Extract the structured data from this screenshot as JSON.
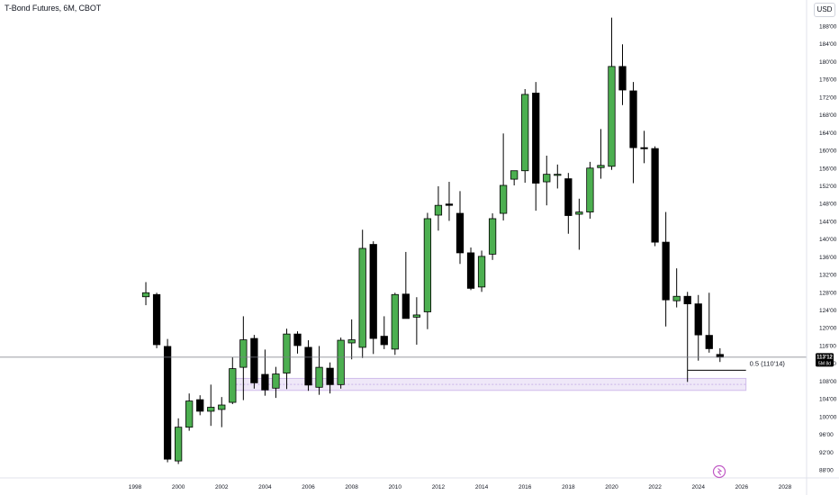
{
  "chart_title": "T-Bond Futures, 6M, CBOT",
  "currency": "USD",
  "colors": {
    "up": "#4caf50",
    "down": "#000000",
    "wick": "#000000",
    "zone_fill": "#ede4f7",
    "zone_border": "#c9b3e8",
    "price_line": "#787b86",
    "price_label_bg": "#000000",
    "axis_text": "#131722"
  },
  "price_label": {
    "value": "113'12",
    "countdown": "5M 8d"
  },
  "annotation": {
    "label": "0.5 (110'14)"
  },
  "chart_data": {
    "type": "candlestick",
    "interval": "6M",
    "x_ticks": [
      "1998",
      "2000",
      "2002",
      "2004",
      "2006",
      "2008",
      "2010",
      "2012",
      "2014",
      "2016",
      "2018",
      "2020",
      "2022",
      "2024",
      "2026",
      "2028"
    ],
    "y_ticks": [
      "88'00",
      "92'00",
      "96'00",
      "100'00",
      "104'00",
      "108'00",
      "112'00",
      "116'00",
      "120'00",
      "124'00",
      "128'00",
      "132'00",
      "136'00",
      "140'00",
      "144'00",
      "148'00",
      "152'00",
      "156'00",
      "160'00",
      "164'00",
      "168'00",
      "172'00",
      "176'00",
      "180'00",
      "184'00",
      "188'00"
    ],
    "ylim": [
      86,
      190.5
    ],
    "xlim": [
      1997.5,
      2029.5
    ],
    "candles": [
      {
        "t": 1998.5,
        "o": 127,
        "h": 130.3,
        "l": 125.1,
        "c": 127.9
      },
      {
        "t": 1999.0,
        "o": 127.5,
        "h": 127.9,
        "l": 115.4,
        "c": 116.2
      },
      {
        "t": 1999.5,
        "o": 115.8,
        "h": 117.5,
        "l": 89.7,
        "c": 90.4
      },
      {
        "t": 2000.0,
        "o": 90,
        "h": 99.6,
        "l": 89.3,
        "c": 97.6
      },
      {
        "t": 2000.5,
        "o": 97.6,
        "h": 105.2,
        "l": 96.8,
        "c": 103.5
      },
      {
        "t": 2001.0,
        "o": 103.8,
        "h": 104.8,
        "l": 100.3,
        "c": 101.2
      },
      {
        "t": 2001.5,
        "o": 101.2,
        "h": 107.2,
        "l": 97.9,
        "c": 102.1
      },
      {
        "t": 2002.0,
        "o": 101.6,
        "h": 104.4,
        "l": 97.6,
        "c": 102.6
      },
      {
        "t": 2002.5,
        "o": 103.2,
        "h": 113.4,
        "l": 102.8,
        "c": 110.8
      },
      {
        "t": 2003.0,
        "o": 111.1,
        "h": 122.6,
        "l": 103.7,
        "c": 117.3
      },
      {
        "t": 2003.5,
        "o": 117.6,
        "h": 118.4,
        "l": 106.3,
        "c": 107.6
      },
      {
        "t": 2004.0,
        "o": 109.5,
        "h": 115.1,
        "l": 104.7,
        "c": 106
      },
      {
        "t": 2004.5,
        "o": 106.4,
        "h": 111.2,
        "l": 104.2,
        "c": 109.6
      },
      {
        "t": 2005.0,
        "o": 109.8,
        "h": 119.8,
        "l": 106.2,
        "c": 118.6
      },
      {
        "t": 2005.5,
        "o": 118.6,
        "h": 119.2,
        "l": 114.2,
        "c": 116
      },
      {
        "t": 2006.0,
        "o": 115.6,
        "h": 117.2,
        "l": 105.8,
        "c": 107.1
      },
      {
        "t": 2006.5,
        "o": 106.6,
        "h": 115.9,
        "l": 104.9,
        "c": 111.1
      },
      {
        "t": 2007.0,
        "o": 110.9,
        "h": 112.2,
        "l": 105.2,
        "c": 107.2
      },
      {
        "t": 2007.5,
        "o": 107.2,
        "h": 117.8,
        "l": 106.3,
        "c": 117.2
      },
      {
        "t": 2008.0,
        "o": 116.6,
        "h": 121.9,
        "l": 112.9,
        "c": 117.3
      },
      {
        "t": 2008.5,
        "o": 115.6,
        "h": 142.1,
        "l": 113.2,
        "c": 137.9
      },
      {
        "t": 2009.0,
        "o": 138.8,
        "h": 139.5,
        "l": 114.1,
        "c": 117.6
      },
      {
        "t": 2009.5,
        "o": 118.1,
        "h": 122.6,
        "l": 115.2,
        "c": 116.2
      },
      {
        "t": 2010.0,
        "o": 115.2,
        "h": 127.9,
        "l": 113.9,
        "c": 127.5
      },
      {
        "t": 2010.5,
        "o": 127.6,
        "h": 137.1,
        "l": 122.1,
        "c": 122.1
      },
      {
        "t": 2011.0,
        "o": 122.4,
        "h": 126.9,
        "l": 116.2,
        "c": 122.9
      },
      {
        "t": 2011.5,
        "o": 123.6,
        "h": 145.9,
        "l": 119.7,
        "c": 144.6
      },
      {
        "t": 2012.0,
        "o": 145.4,
        "h": 151.9,
        "l": 141.9,
        "c": 147.6
      },
      {
        "t": 2012.5,
        "o": 147.9,
        "h": 152.9,
        "l": 144.1,
        "c": 147.6
      },
      {
        "t": 2013.0,
        "o": 145.8,
        "h": 150.8,
        "l": 134.4,
        "c": 136.9
      },
      {
        "t": 2013.5,
        "o": 136.9,
        "h": 138.1,
        "l": 128.5,
        "c": 128.9
      },
      {
        "t": 2014.0,
        "o": 129.2,
        "h": 137.4,
        "l": 128.1,
        "c": 136.1
      },
      {
        "t": 2014.5,
        "o": 136.6,
        "h": 145.8,
        "l": 135.3,
        "c": 144.6
      },
      {
        "t": 2015.0,
        "o": 145.8,
        "h": 163.8,
        "l": 144.2,
        "c": 152.1
      },
      {
        "t": 2015.5,
        "o": 153.5,
        "h": 155.2,
        "l": 152.1,
        "c": 155.4
      },
      {
        "t": 2016.0,
        "o": 155.4,
        "h": 173.8,
        "l": 152.7,
        "c": 172.6
      },
      {
        "t": 2016.5,
        "o": 172.9,
        "h": 175.4,
        "l": 146.4,
        "c": 152.6
      },
      {
        "t": 2017.0,
        "o": 152.9,
        "h": 158.8,
        "l": 147.6,
        "c": 154.6
      },
      {
        "t": 2017.5,
        "o": 154.6,
        "h": 156.8,
        "l": 151.4,
        "c": 154.6
      },
      {
        "t": 2018.0,
        "o": 153.6,
        "h": 154.9,
        "l": 141.2,
        "c": 145.3
      },
      {
        "t": 2018.5,
        "o": 145.6,
        "h": 149.1,
        "l": 137.6,
        "c": 146.1
      },
      {
        "t": 2019.0,
        "o": 146.1,
        "h": 157.4,
        "l": 144.6,
        "c": 156
      },
      {
        "t": 2019.5,
        "o": 156.1,
        "h": 164.8,
        "l": 153.6,
        "c": 156.6
      },
      {
        "t": 2020.0,
        "o": 156.4,
        "h": 189.9,
        "l": 155.6,
        "c": 178.9
      },
      {
        "t": 2020.5,
        "o": 178.9,
        "h": 183.9,
        "l": 170.2,
        "c": 173.6
      },
      {
        "t": 2021.0,
        "o": 173.4,
        "h": 175.4,
        "l": 152.6,
        "c": 160.6
      },
      {
        "t": 2021.5,
        "o": 160.6,
        "h": 164.4,
        "l": 157.1,
        "c": 160.5
      },
      {
        "t": 2022.0,
        "o": 160.4,
        "h": 160.9,
        "l": 138.4,
        "c": 139.3
      },
      {
        "t": 2022.5,
        "o": 139.3,
        "h": 146.1,
        "l": 120.3,
        "c": 126.3
      },
      {
        "t": 2023.0,
        "o": 126.1,
        "h": 133.4,
        "l": 124.6,
        "c": 127.1
      },
      {
        "t": 2023.5,
        "o": 127.1,
        "h": 128.1,
        "l": 107.8,
        "c": 125.4
      },
      {
        "t": 2024.0,
        "o": 125.4,
        "h": 127.4,
        "l": 112.6,
        "c": 118.4
      },
      {
        "t": 2024.5,
        "o": 118.3,
        "h": 127.9,
        "l": 114.4,
        "c": 115.3
      },
      {
        "t": 2025.0,
        "o": 114,
        "h": 115.4,
        "l": 112.3,
        "c": 113.4
      }
    ],
    "current_price": 113.375,
    "demand_zone": {
      "t0": 2002.5,
      "t1": 2026.2,
      "low": 105.9,
      "high": 108.6
    },
    "fib_level": {
      "t0": 2023.5,
      "t1": 2026.2,
      "y": 110.44
    }
  }
}
